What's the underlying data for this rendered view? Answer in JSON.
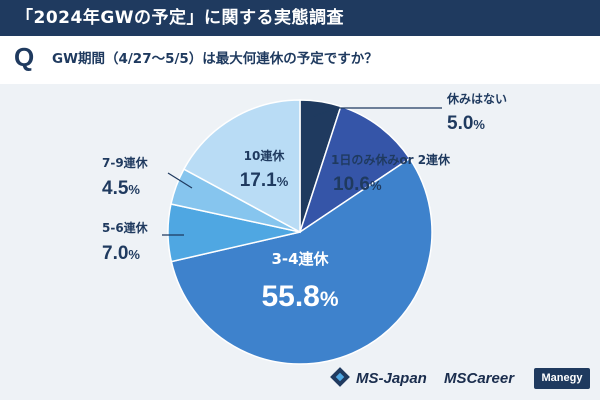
{
  "header": {
    "title": "「2024年GWの予定」に関する実態調査"
  },
  "question": {
    "mark": "Q",
    "text": "GW期間（4/27〜5/5）は最大何連休の予定ですか？"
  },
  "chart_data": {
    "type": "pie",
    "start_angle_deg": 0,
    "direction": "clockwise",
    "slices": [
      {
        "label": "休みはない",
        "value": 5.0,
        "display": "5.0",
        "unit": "%",
        "color": "#1f3a5f",
        "label_color": "#1f3a5f"
      },
      {
        "label": "1日のみ休みor 2連休",
        "value": 10.6,
        "display": "10.6",
        "unit": "%",
        "color": "#3555a8",
        "label_color": "#1f3a5f"
      },
      {
        "label": "3-4連休",
        "value": 55.8,
        "display": "55.8",
        "unit": "%",
        "color": "#3e82cc",
        "label_color": "#ffffff"
      },
      {
        "label": "5-6連休",
        "value": 7.0,
        "display": "7.0",
        "unit": "%",
        "color": "#4fa7e2",
        "label_color": "#1f3a5f"
      },
      {
        "label": "7-9連休",
        "value": 4.5,
        "display": "4.5",
        "unit": "%",
        "color": "#86c5ee",
        "label_color": "#1f3a5f"
      },
      {
        "label": "10連休",
        "value": 17.1,
        "display": "17.1",
        "unit": "%",
        "color": "#b9dcf5",
        "label_color": "#1f3a5f"
      }
    ]
  },
  "footer": {
    "logo_ms_japan": "MS-Japan",
    "logo_ms_career": "MSCareer",
    "logo_manegy": "Manegy"
  }
}
